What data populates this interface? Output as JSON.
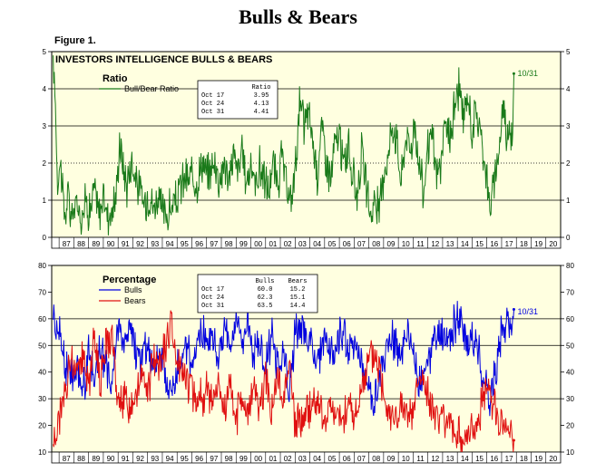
{
  "page": {
    "title": "Bulls & Bears",
    "figure_label": "Figure 1."
  },
  "chart_data": [
    {
      "type": "line",
      "title": "INVESTORS INTELLIGENCE BULLS & BEARS",
      "subtitle": "Ratio",
      "ylim": [
        0,
        5
      ],
      "yticks": [
        "0",
        "1",
        "2",
        "3",
        "4",
        "5"
      ],
      "xlim": [
        1986.5,
        2021.0
      ],
      "xticks": [
        "87",
        "88",
        "89",
        "90",
        "91",
        "92",
        "93",
        "94",
        "95",
        "96",
        "97",
        "98",
        "99",
        "00",
        "01",
        "02",
        "03",
        "04",
        "05",
        "06",
        "07",
        "08",
        "09",
        "10",
        "11",
        "12",
        "13",
        "14",
        "15",
        "16",
        "17",
        "18",
        "19",
        "20"
      ],
      "reference_lines": [
        {
          "y": 1,
          "style": "solid"
        },
        {
          "y": 2,
          "style": "dotted"
        },
        {
          "y": 3,
          "style": "solid"
        },
        {
          "y": 4,
          "style": "solid"
        }
      ],
      "series": [
        {
          "name": "Bull/Bear Ratio",
          "color": "#1a7a1a",
          "x": [
            1986.6,
            1986.75,
            1986.9,
            1987.05,
            1987.2,
            1987.35,
            1987.5,
            1987.65,
            1987.8,
            1987.95,
            1988.2,
            1988.5,
            1988.8,
            1989.1,
            1989.4,
            1989.7,
            1990.0,
            1990.3,
            1990.6,
            1990.9,
            1991.1,
            1991.35,
            1991.6,
            1991.9,
            1992.2,
            1992.5,
            1992.8,
            1993.1,
            1993.4,
            1993.7,
            1994.0,
            1994.3,
            1994.6,
            1994.9,
            1995.2,
            1995.5,
            1995.8,
            1996.1,
            1996.4,
            1996.7,
            1997.0,
            1997.3,
            1997.6,
            1997.9,
            1998.2,
            1998.5,
            1998.8,
            1999.1,
            1999.4,
            1999.7,
            2000.0,
            2000.3,
            2000.6,
            2000.9,
            2001.2,
            2001.5,
            2001.8,
            2002.1,
            2002.4,
            2002.7,
            2003.0,
            2003.3,
            2003.6,
            2003.9,
            2004.2,
            2004.5,
            2004.8,
            2005.1,
            2005.4,
            2005.7,
            2006.0,
            2006.3,
            2006.6,
            2006.9,
            2007.2,
            2007.5,
            2007.8,
            2008.1,
            2008.4,
            2008.7,
            2009.0,
            2009.3,
            2009.6,
            2009.9,
            2010.2,
            2010.5,
            2010.8,
            2011.1,
            2011.4,
            2011.7,
            2012.0,
            2012.3,
            2012.6,
            2012.9,
            2013.2,
            2013.5,
            2013.8,
            2014.1,
            2014.4,
            2014.7,
            2015.0,
            2015.3,
            2015.6,
            2015.9,
            2016.2,
            2016.5,
            2016.8,
            2017.1,
            2017.4,
            2017.6,
            2017.75,
            2017.83
          ],
          "values": [
            4.9,
            3.6,
            1.4,
            2.1,
            1.6,
            0.6,
            0.8,
            1.1,
            0.5,
            0.7,
            0.9,
            0.6,
            1.0,
            0.7,
            1.3,
            0.6,
            1.1,
            0.6,
            0.7,
            1.2,
            2.6,
            1.9,
            1.4,
            2.1,
            1.6,
            1.2,
            0.9,
            1.2,
            0.8,
            1.1,
            0.7,
            0.6,
            0.8,
            0.9,
            1.3,
            1.6,
            1.5,
            1.7,
            1.5,
            2.1,
            1.6,
            1.9,
            2.0,
            1.5,
            2.1,
            1.4,
            2.3,
            1.8,
            2.2,
            1.5,
            2.0,
            1.4,
            1.9,
            1.6,
            1.2,
            2.0,
            1.3,
            2.2,
            1.3,
            0.9,
            1.8,
            3.6,
            3.0,
            3.4,
            2.6,
            1.7,
            3.0,
            2.2,
            1.5,
            2.5,
            2.7,
            1.9,
            2.5,
            1.6,
            1.2,
            2.3,
            1.4,
            0.6,
            1.0,
            0.6,
            1.8,
            2.2,
            3.1,
            2.6,
            1.5,
            2.8,
            2.4,
            3.0,
            2.0,
            1.2,
            2.4,
            2.7,
            1.6,
            2.0,
            3.1,
            2.6,
            3.5,
            4.1,
            3.1,
            3.8,
            2.9,
            3.4,
            2.7,
            2.0,
            0.8,
            1.4,
            2.3,
            3.6,
            2.7,
            3.0,
            2.9,
            4.41
          ]
        }
      ],
      "end_label": "10/31",
      "table": {
        "header": [
          "",
          "Ratio"
        ],
        "rows": [
          [
            "Oct 17",
            "3.95"
          ],
          [
            "Oct 24",
            "4.13"
          ],
          [
            "Oct 31",
            "4.41"
          ]
        ]
      }
    },
    {
      "type": "line",
      "title": "",
      "subtitle": "Percentage",
      "ylim": [
        10,
        80
      ],
      "yticks": [
        "10",
        "20",
        "30",
        "40",
        "50",
        "60",
        "70",
        "80"
      ],
      "xlim": [
        1986.5,
        2021.0
      ],
      "xticks": [
        "87",
        "88",
        "89",
        "90",
        "91",
        "92",
        "93",
        "94",
        "95",
        "96",
        "97",
        "98",
        "99",
        "00",
        "01",
        "02",
        "03",
        "04",
        "05",
        "06",
        "07",
        "08",
        "09",
        "10",
        "11",
        "12",
        "13",
        "14",
        "15",
        "16",
        "17",
        "18",
        "19",
        "20"
      ],
      "reference_lines": [
        {
          "y": 30,
          "style": "solid"
        },
        {
          "y": 50,
          "style": "solid"
        },
        {
          "y": 60,
          "style": "solid"
        }
      ],
      "series": [
        {
          "name": "Bulls",
          "color": "#0000e0",
          "x": [
            1986.6,
            1987.0,
            1987.4,
            1987.8,
            1988.2,
            1988.6,
            1989.0,
            1989.4,
            1989.8,
            1990.2,
            1990.6,
            1991.0,
            1991.4,
            1991.8,
            1992.2,
            1992.6,
            1993.0,
            1993.4,
            1993.8,
            1994.2,
            1994.6,
            1995.0,
            1995.4,
            1995.8,
            1996.2,
            1996.6,
            1997.0,
            1997.4,
            1997.8,
            1998.2,
            1998.6,
            1999.0,
            1999.4,
            1999.8,
            2000.2,
            2000.6,
            2001.0,
            2001.4,
            2001.8,
            2002.2,
            2002.6,
            2003.0,
            2003.4,
            2003.8,
            2004.2,
            2004.6,
            2005.0,
            2005.4,
            2005.8,
            2006.2,
            2006.6,
            2007.0,
            2007.4,
            2007.8,
            2008.2,
            2008.6,
            2009.0,
            2009.4,
            2009.8,
            2010.2,
            2010.6,
            2011.0,
            2011.4,
            2011.8,
            2012.2,
            2012.6,
            2013.0,
            2013.4,
            2013.8,
            2014.2,
            2014.6,
            2015.0,
            2015.4,
            2015.8,
            2016.2,
            2016.6,
            2017.0,
            2017.4,
            2017.6,
            2017.75,
            2017.83
          ],
          "values": [
            62,
            55,
            44,
            38,
            42,
            32,
            46,
            38,
            50,
            40,
            35,
            58,
            52,
            55,
            48,
            44,
            50,
            42,
            48,
            38,
            33,
            40,
            45,
            47,
            48,
            55,
            50,
            56,
            46,
            55,
            48,
            58,
            52,
            60,
            45,
            52,
            42,
            55,
            40,
            50,
            30,
            55,
            58,
            54,
            48,
            42,
            55,
            46,
            50,
            56,
            48,
            51,
            45,
            38,
            30,
            32,
            45,
            50,
            52,
            44,
            53,
            48,
            36,
            40,
            47,
            52,
            55,
            50,
            58,
            60,
            48,
            54,
            50,
            36,
            30,
            42,
            56,
            60,
            54,
            58,
            63.5
          ]
        },
        {
          "name": "Bears",
          "color": "#e01010",
          "x": [
            1986.6,
            1987.0,
            1987.4,
            1987.8,
            1988.2,
            1988.6,
            1989.0,
            1989.4,
            1989.8,
            1990.2,
            1990.6,
            1991.0,
            1991.4,
            1991.8,
            1992.2,
            1992.6,
            1993.0,
            1993.4,
            1993.8,
            1994.2,
            1994.6,
            1995.0,
            1995.4,
            1995.8,
            1996.2,
            1996.6,
            1997.0,
            1997.4,
            1997.8,
            1998.2,
            1998.6,
            1999.0,
            1999.4,
            1999.8,
            2000.2,
            2000.6,
            2001.0,
            2001.4,
            2001.8,
            2002.2,
            2002.6,
            2003.0,
            2003.4,
            2003.8,
            2004.2,
            2004.6,
            2005.0,
            2005.4,
            2005.8,
            2006.2,
            2006.6,
            2007.0,
            2007.4,
            2007.8,
            2008.2,
            2008.6,
            2009.0,
            2009.4,
            2009.8,
            2010.2,
            2010.6,
            2011.0,
            2011.4,
            2011.8,
            2012.2,
            2012.6,
            2013.0,
            2013.4,
            2013.8,
            2014.2,
            2014.6,
            2015.0,
            2015.4,
            2015.8,
            2016.2,
            2016.6,
            2017.0,
            2017.4,
            2017.6,
            2017.75,
            2017.83
          ],
          "values": [
            13,
            22,
            34,
            45,
            40,
            48,
            36,
            52,
            38,
            50,
            55,
            26,
            30,
            28,
            34,
            38,
            32,
            44,
            40,
            50,
            58,
            46,
            40,
            35,
            32,
            30,
            33,
            28,
            35,
            26,
            33,
            24,
            27,
            25,
            34,
            28,
            36,
            26,
            38,
            30,
            46,
            20,
            22,
            25,
            30,
            28,
            22,
            27,
            24,
            22,
            28,
            23,
            30,
            40,
            47,
            45,
            33,
            26,
            22,
            28,
            22,
            24,
            38,
            35,
            27,
            24,
            20,
            22,
            17,
            15,
            16,
            18,
            22,
            34,
            32,
            25,
            21,
            18,
            20,
            16,
            14.4
          ]
        }
      ],
      "end_label": "10/31",
      "table": {
        "header": [
          "",
          "Bulls",
          "Bears"
        ],
        "rows": [
          [
            "Oct 17",
            "60.0",
            "15.2"
          ],
          [
            "Oct 24",
            "62.3",
            "15.1"
          ],
          [
            "Oct 31",
            "63.5",
            "14.4"
          ]
        ]
      }
    }
  ]
}
